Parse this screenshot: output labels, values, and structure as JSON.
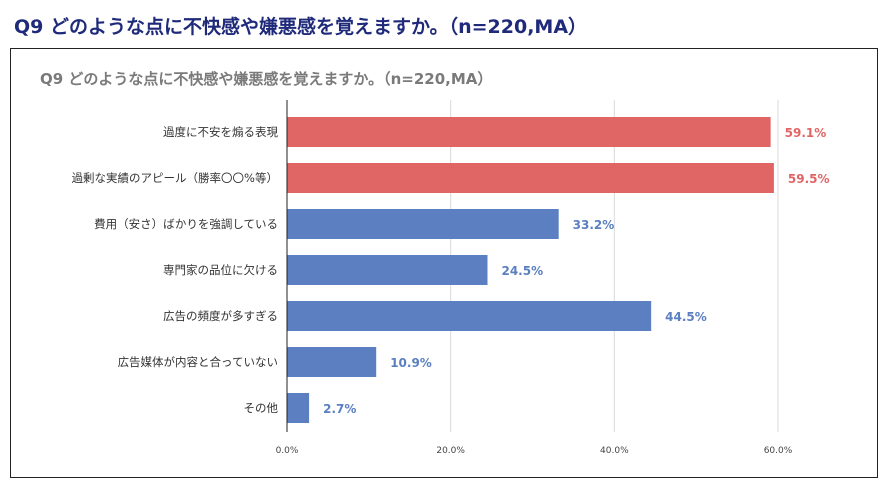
{
  "heading": "Q9 どのような点に不快感や嫌悪感を覚えますか。（n=220,MA）",
  "chart_data": {
    "type": "bar",
    "orientation": "horizontal",
    "title": "Q9 どのような点に不快感や嫌悪感を覚えますか。（n=220,MA）",
    "categories": [
      "過度に不安を煽る表現",
      "過剰な実績のアピール（勝率〇〇%等）",
      "費用（安さ）ばかりを強調している",
      "専門家の品位に欠ける",
      "広告の頻度が多すぎる",
      "広告媒体が内容と合っていない",
      "その他"
    ],
    "values": [
      59.1,
      59.5,
      33.2,
      24.5,
      44.5,
      10.9,
      2.7
    ],
    "data_labels": [
      "59.1%",
      "59.5%",
      "33.2%",
      "24.5%",
      "44.5%",
      "10.9%",
      "2.7%"
    ],
    "highlight": [
      true,
      true,
      false,
      false,
      false,
      false,
      false
    ],
    "xlim": [
      0,
      60
    ],
    "ticks": [
      0,
      20,
      40,
      60
    ],
    "tick_labels": [
      "0.0%",
      "20.0%",
      "40.0%",
      "60.0%"
    ],
    "grid": true,
    "colors": {
      "highlight": "#e06666",
      "default": "#5b7fc1"
    }
  }
}
